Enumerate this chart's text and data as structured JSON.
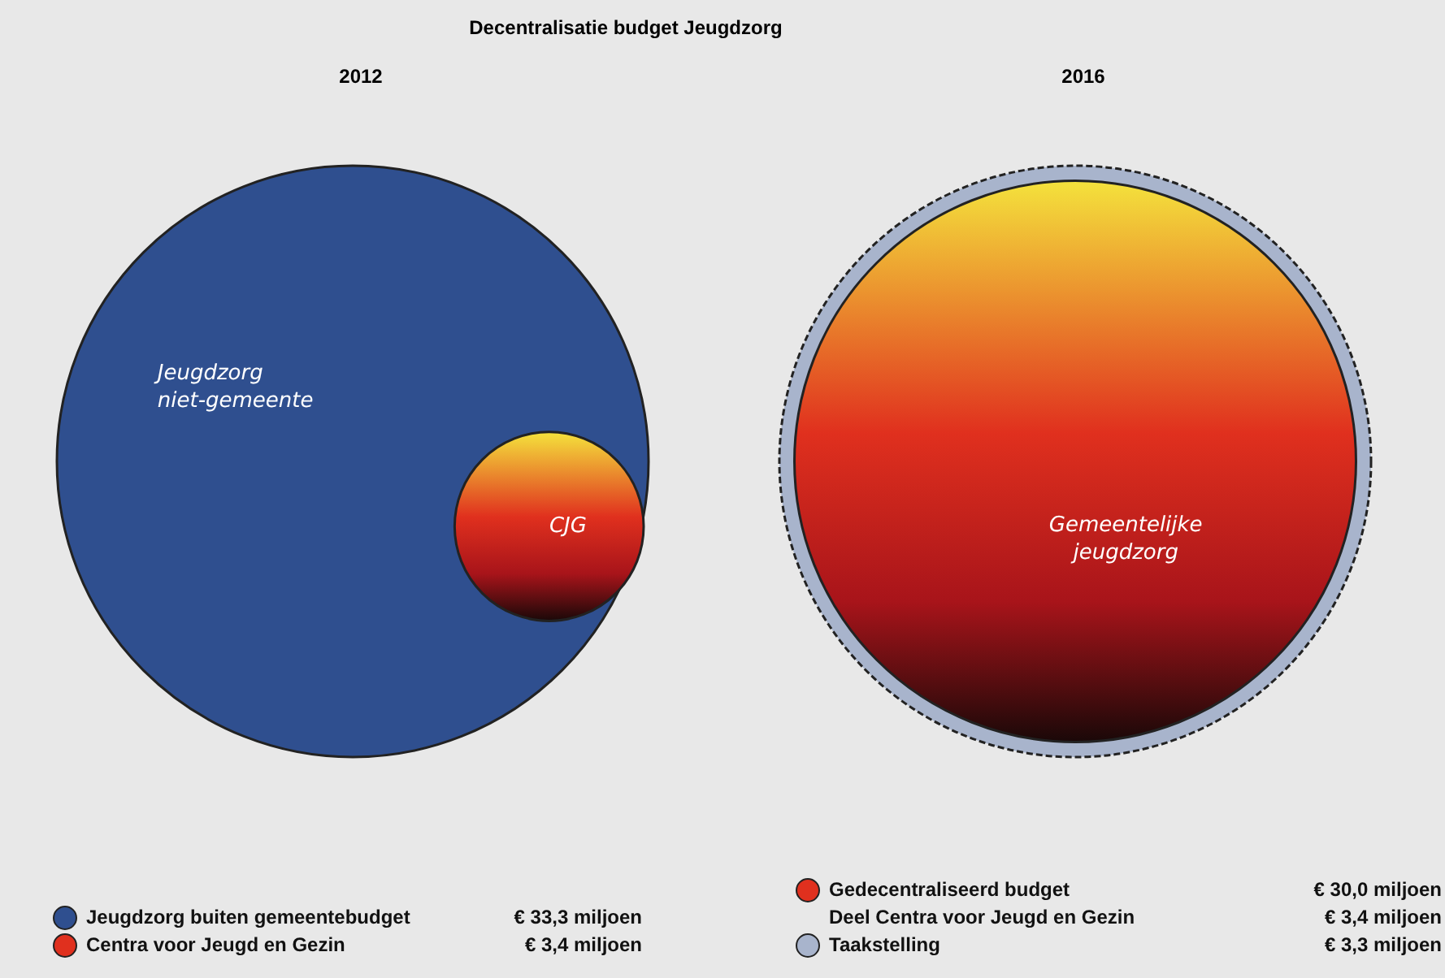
{
  "chart_data": [
    {
      "type": "other",
      "title": "Decentralisatie budget Jeugdzorg",
      "subtitle": "2012",
      "categories": [
        "Jeugdzorg buiten gemeentebudget",
        "Centra voor Jeugd en Gezin"
      ],
      "values": [
        33.3,
        3.4
      ],
      "value_labels": [
        "€ 33,3 miljoen",
        "€ 3,4 miljoen"
      ],
      "colors": [
        "#2f4f8f",
        "#e0301e"
      ],
      "annotations": [
        "Jeugdzorg niet-gemeente",
        "CJG"
      ]
    },
    {
      "type": "other",
      "subtitle": "2016",
      "categories": [
        "Gedecentraliseerd budget",
        "Deel Centra voor Jeugd en Gezin",
        "Taakstelling"
      ],
      "values": [
        30.0,
        3.4,
        3.3
      ],
      "value_labels": [
        "€ 30,0 miljoen",
        "€ 3,4 miljoen",
        "€ 3,3 miljoen"
      ],
      "colors": [
        "#e0301e",
        null,
        "#a8b4cc"
      ],
      "annotations": [
        "Gemeentelijke jeugdzorg"
      ]
    }
  ]
}
